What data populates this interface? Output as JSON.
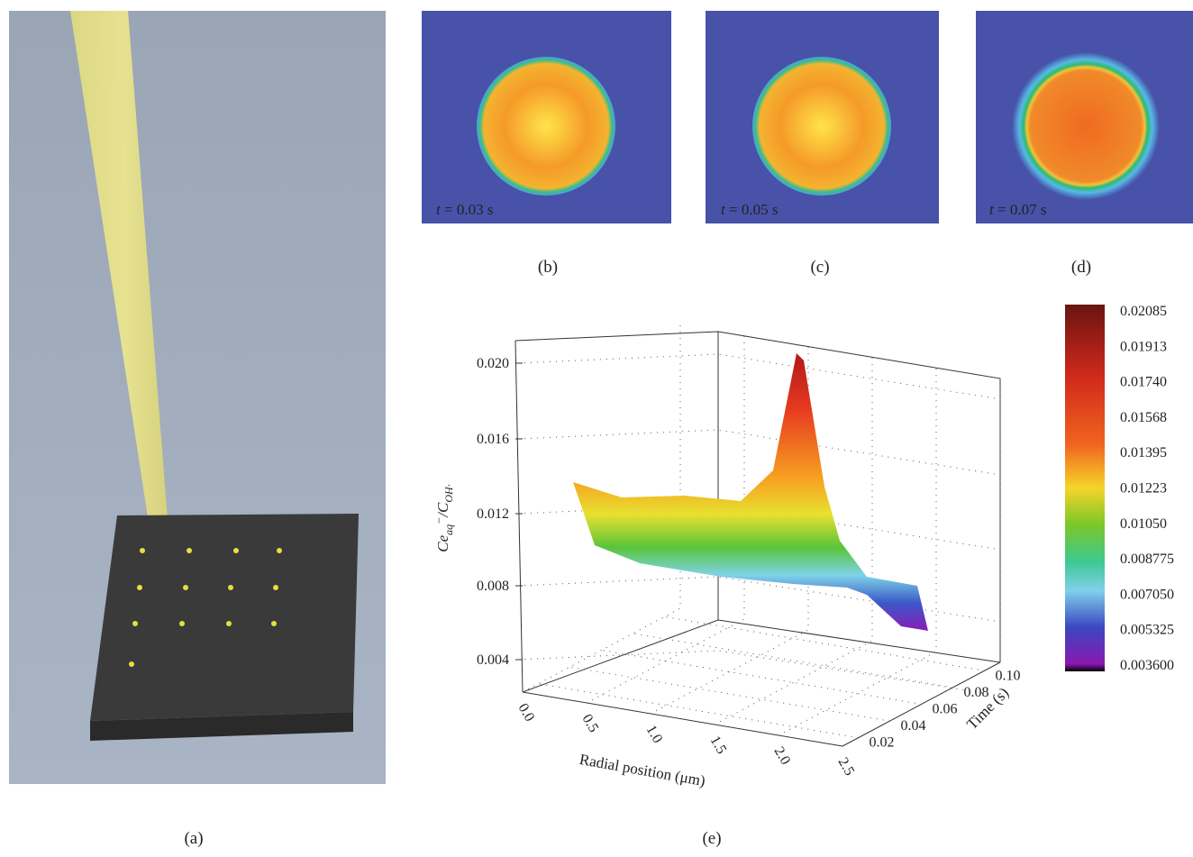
{
  "panels": {
    "a": {
      "caption": "(a)"
    },
    "b": {
      "caption": "(b)",
      "time_label": "t",
      "time_value": "= 0.03 s"
    },
    "c": {
      "caption": "(c)",
      "time_label": "t",
      "time_value": "= 0.05 s"
    },
    "d": {
      "caption": "(d)",
      "time_label": "t",
      "time_value": "= 0.07 s"
    },
    "e": {
      "caption": "(e)",
      "y_label": {
        "main": "Ce",
        "sub": "aq",
        "sup": "−",
        "rest": "/C",
        "sub2": "OH·"
      },
      "x_label": "Radial position (μm)",
      "z_label": "Time (s)",
      "y_ticks": [
        "0.020",
        "0.016",
        "0.012",
        "0.008",
        "0.004"
      ],
      "x_ticks": [
        "0.0",
        "0.5",
        "1.0",
        "1.5",
        "2.0",
        "2.5"
      ],
      "z_ticks": [
        "0.02",
        "0.04",
        "0.06",
        "0.08",
        "0.10"
      ],
      "colorbar": [
        "0.02085",
        "0.01913",
        "0.01740",
        "0.01568",
        "0.01395",
        "0.01223",
        "0.01050",
        "0.008775",
        "0.007050",
        "0.005325",
        "0.003600"
      ]
    }
  }
}
